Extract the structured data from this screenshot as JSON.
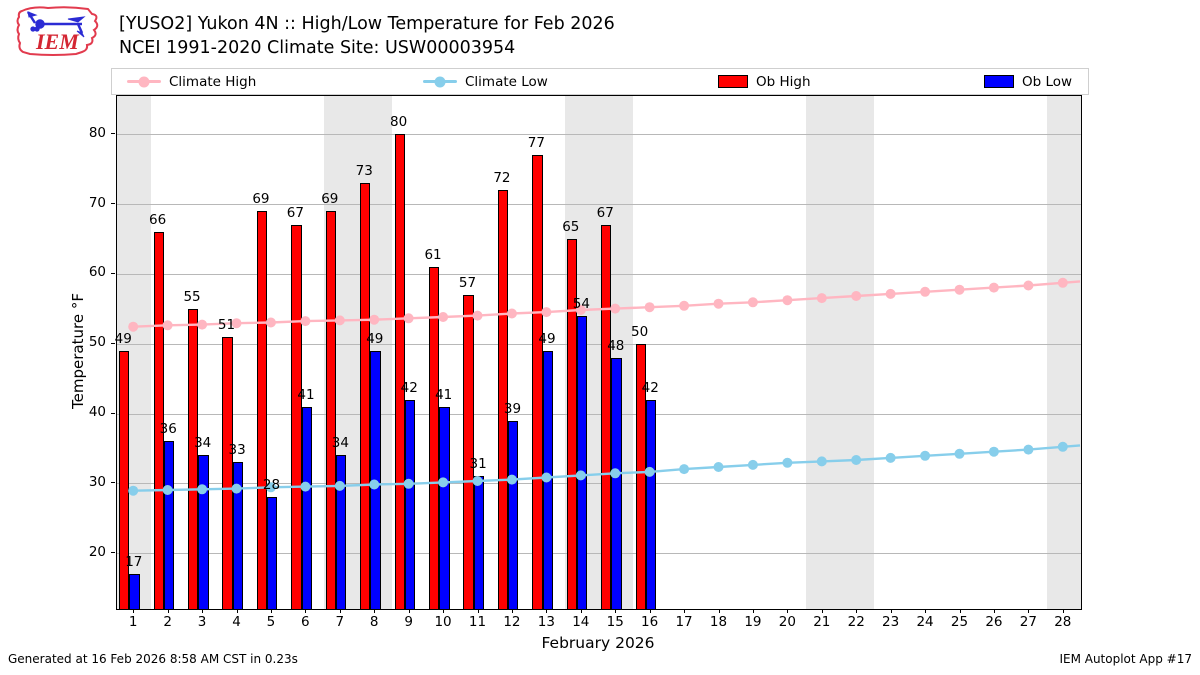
{
  "header": {
    "logo_text": "IEM",
    "title_line1": "[YUSO2] Yukon 4N :: High/Low Temperature for Feb 2026",
    "title_line2": "NCEI 1991-2020 Climate Site: USW00003954"
  },
  "legend": {
    "items": [
      {
        "label": "Climate High",
        "type": "line",
        "color": "#ffb6c1"
      },
      {
        "label": "Climate Low",
        "type": "line",
        "color": "#87ceeb"
      },
      {
        "label": "Ob High",
        "type": "bar",
        "color": "#ff0000"
      },
      {
        "label": "Ob Low",
        "type": "bar",
        "color": "#0000ff"
      }
    ]
  },
  "chart_data": {
    "type": "bar",
    "title": "[YUSO2] Yukon 4N :: High/Low Temperature for Feb 2026",
    "subtitle": "NCEI 1991-2020 Climate Site: USW00003954",
    "xlabel": "February 2026",
    "ylabel": "Temperature °F",
    "x": [
      1,
      2,
      3,
      4,
      5,
      6,
      7,
      8,
      9,
      10,
      11,
      12,
      13,
      14,
      15,
      16,
      17,
      18,
      19,
      20,
      21,
      22,
      23,
      24,
      25,
      26,
      27,
      28
    ],
    "ylim": [
      12,
      85.5
    ],
    "yticks": [
      20,
      30,
      40,
      50,
      60,
      70,
      80
    ],
    "weekend_shaded_days": [
      1,
      7,
      8,
      14,
      15,
      21,
      22,
      28
    ],
    "shade_color": "#e8e8e8",
    "grid": true,
    "legend_position": "top",
    "series": [
      {
        "name": "Ob High",
        "type": "bar",
        "color": "#ff0000",
        "values": [
          49,
          66,
          55,
          51,
          69,
          67,
          69,
          73,
          80,
          61,
          57,
          72,
          77,
          65,
          67,
          50,
          null,
          null,
          null,
          null,
          null,
          null,
          null,
          null,
          null,
          null,
          null,
          null
        ]
      },
      {
        "name": "Ob Low",
        "type": "bar",
        "color": "#0000ff",
        "values": [
          17,
          36,
          34,
          33,
          28,
          41,
          34,
          49,
          42,
          41,
          31,
          39,
          49,
          54,
          48,
          42,
          null,
          null,
          null,
          null,
          null,
          null,
          null,
          null,
          null,
          null,
          null,
          null
        ]
      },
      {
        "name": "Climate High",
        "type": "line",
        "color": "#ffb6c1",
        "values": [
          52.3,
          52.5,
          52.6,
          52.8,
          52.9,
          53.1,
          53.2,
          53.3,
          53.5,
          53.7,
          53.9,
          54.2,
          54.4,
          54.7,
          54.9,
          55.1,
          55.3,
          55.6,
          55.8,
          56.1,
          56.4,
          56.7,
          57.0,
          57.3,
          57.6,
          57.9,
          58.2,
          58.6
        ]
      },
      {
        "name": "Climate Low",
        "type": "line",
        "color": "#87ceeb",
        "values": [
          28.8,
          28.9,
          29.0,
          29.1,
          29.3,
          29.4,
          29.5,
          29.7,
          29.8,
          30.0,
          30.2,
          30.4,
          30.7,
          31.0,
          31.3,
          31.5,
          31.9,
          32.2,
          32.5,
          32.8,
          33.0,
          33.2,
          33.5,
          33.8,
          34.1,
          34.4,
          34.7,
          35.1
        ]
      }
    ]
  },
  "footer": {
    "left": "Generated at 16 Feb 2026 8:58 AM CST in 0.23s",
    "right": "IEM Autoplot App #17"
  }
}
